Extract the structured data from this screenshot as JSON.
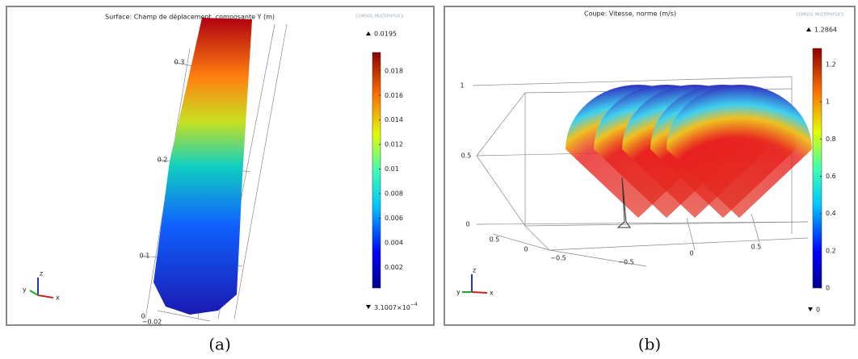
{
  "panel_a": {
    "title": "Surface: Champ de déplacement, composante Y (m)",
    "logo": "COMSOL MULTIPHYSICS",
    "axis_labels": [
      "0.3",
      "0.2",
      "0.1",
      "0",
      "−0.02"
    ],
    "colorbar": {
      "max": 0.0195,
      "min_label": "3.1007×10",
      "min_exponent": "−4",
      "min": 0.00031007,
      "ticks": [
        0.002,
        0.004,
        0.006,
        0.008,
        0.01,
        0.012,
        0.014,
        0.016,
        0.018
      ]
    },
    "triad": [
      "z",
      "y",
      "x"
    ],
    "caption": "(a)"
  },
  "panel_b": {
    "title": "Coupe: Vitesse, norme (m/s)",
    "logo": "COMSOL MULTIPHYSICS",
    "axis_labels": [
      "1",
      "0.5",
      "0",
      "0.5",
      "0",
      "−0.5",
      "−0.5",
      "0",
      "0.5"
    ],
    "colorbar": {
      "max": 1.2864,
      "min": 0,
      "ticks": [
        0,
        0.2,
        0.4,
        0.6,
        0.8,
        1,
        1.2
      ]
    },
    "triad": [
      "z",
      "y",
      "x"
    ],
    "caption": "(b)"
  }
}
